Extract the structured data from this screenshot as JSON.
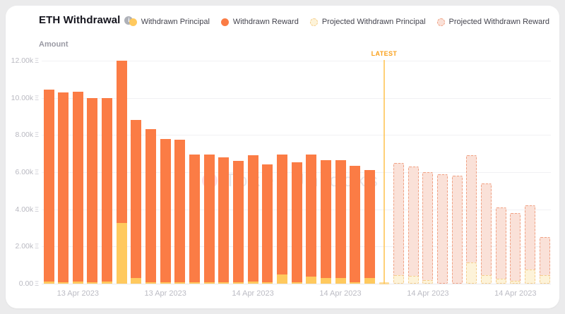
{
  "header": {
    "title": "ETH Withdrawal",
    "info_icon": "i"
  },
  "legend": {
    "items": [
      {
        "label": "Withdrawn Principal",
        "type": "solid-principal"
      },
      {
        "label": "Withdrawn Reward",
        "type": "solid-reward"
      },
      {
        "label": "Projected Withdrawn Principal",
        "type": "projected-principal"
      },
      {
        "label": "Projected Withdrawn Reward",
        "type": "projected-reward"
      }
    ]
  },
  "colors": {
    "principal": "#FFC95E",
    "reward": "#FB7C45",
    "proj_principal_fill": "#FDF3D9",
    "proj_principal_border": "#F5CE8B",
    "proj_reward_fill": "#FAE1D8",
    "proj_reward_border": "#F0A183",
    "latest_line": "#FFC24B",
    "latest_label": "#F9A01B"
  },
  "y_axis": {
    "title": "Amount",
    "unit_symbol": "Ξ",
    "ticks": [
      "12.00k",
      "10.00k",
      "8.00k",
      "6.00k",
      "4.00k",
      "2.00k",
      "0.00"
    ],
    "max": 12000
  },
  "x_axis": {
    "labels": [
      {
        "text": "13 Apr 2023",
        "slot": 2
      },
      {
        "text": "13 Apr 2023",
        "slot": 8
      },
      {
        "text": "14 Apr 2023",
        "slot": 14
      },
      {
        "text": "14 Apr 2023",
        "slot": 20
      },
      {
        "text": "14 Apr 2023",
        "slot": 26
      },
      {
        "text": "14 Apr 2023",
        "slot": 32
      }
    ]
  },
  "latest_marker": {
    "label": "LATEST",
    "slot": 23
  },
  "watermark": {
    "text": "TokenUnlocks"
  },
  "chart_data": {
    "type": "bar",
    "stacked": true,
    "title": "ETH Withdrawal",
    "ylabel": "Amount",
    "y_unit": "ETH",
    "ylim": [
      0,
      12000
    ],
    "grid": "horizontal-only",
    "legend_position": "top-right",
    "actual": {
      "start_slot": 0,
      "principal": [
        100,
        80,
        120,
        60,
        100,
        3250,
        300,
        60,
        60,
        60,
        60,
        60,
        60,
        60,
        120,
        60,
        500,
        60,
        380,
        300,
        300,
        60,
        300
      ],
      "reward": [
        10350,
        10220,
        10200,
        9940,
        9900,
        8750,
        8500,
        8240,
        7740,
        7690,
        6890,
        6890,
        6740,
        6540,
        6780,
        6340,
        6450,
        6490,
        6570,
        6350,
        6350,
        6290,
        5800
      ]
    },
    "projected": {
      "start_slot": 24,
      "principal": [
        450,
        400,
        200,
        60,
        60,
        1150,
        450,
        250,
        150,
        750,
        450
      ],
      "reward": [
        6050,
        5900,
        5800,
        5840,
        5740,
        5750,
        4950,
        3850,
        3650,
        3450,
        2050
      ]
    }
  }
}
